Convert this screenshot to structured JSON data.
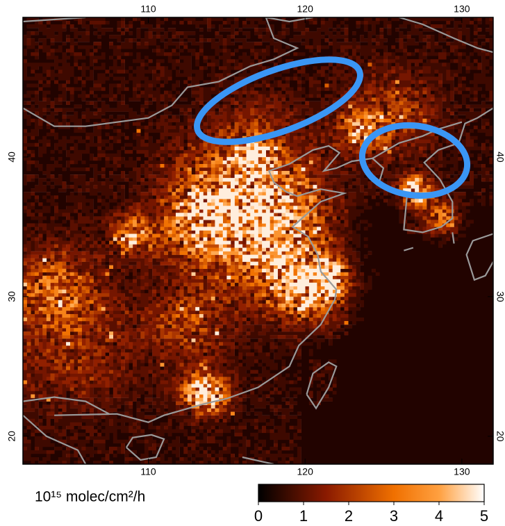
{
  "map": {
    "xlim": [
      102,
      132
    ],
    "ylim": [
      18,
      50
    ],
    "xticks": [
      110,
      120,
      130
    ],
    "yticks": [
      20,
      30,
      40
    ],
    "colorbar": {
      "label": "10¹⁵ molec/cm²/h",
      "clim": [
        0,
        5
      ],
      "ticks": [
        0,
        1,
        2,
        3,
        4,
        5
      ]
    }
  }
}
